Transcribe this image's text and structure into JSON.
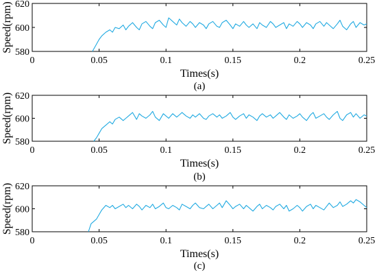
{
  "figure": {
    "colors": {
      "series": "#1fa9e1",
      "axis": "#000000",
      "background": "#ffffff"
    }
  },
  "chart_data": [
    {
      "type": "line",
      "caption": "(a)",
      "xlabel": "Times(s)",
      "ylabel": "Speed(rpm)",
      "xlim": [
        0,
        0.25
      ],
      "ylim": [
        580,
        620
      ],
      "xticks": [
        "0",
        "0.05",
        "0.1",
        "0.15",
        "0.2",
        "0.25"
      ],
      "yticks": [
        "580",
        "600",
        "620"
      ],
      "grid": false,
      "series": [
        {
          "x": [
            0.045,
            0.048,
            0.05,
            0.052,
            0.055,
            0.058,
            0.06,
            0.062,
            0.065,
            0.068,
            0.07,
            0.072,
            0.075,
            0.078,
            0.08,
            0.082,
            0.085,
            0.088,
            0.09,
            0.092,
            0.095,
            0.098,
            0.1,
            0.102,
            0.105,
            0.108,
            0.11,
            0.112,
            0.115,
            0.118,
            0.12,
            0.122,
            0.125,
            0.128,
            0.13,
            0.132,
            0.135,
            0.138,
            0.14,
            0.142,
            0.145,
            0.148,
            0.15,
            0.152,
            0.155,
            0.158,
            0.16,
            0.162,
            0.165,
            0.168,
            0.17,
            0.172,
            0.175,
            0.178,
            0.18,
            0.182,
            0.185,
            0.188,
            0.19,
            0.192,
            0.195,
            0.198,
            0.2,
            0.202,
            0.205,
            0.208,
            0.21,
            0.212,
            0.215,
            0.218,
            0.22,
            0.222,
            0.225,
            0.228,
            0.23,
            0.232,
            0.235,
            0.238,
            0.24,
            0.242,
            0.245,
            0.248,
            0.25
          ],
          "y": [
            580,
            586,
            590,
            593,
            596,
            598,
            596,
            600,
            599,
            602,
            598,
            601,
            604,
            600,
            598,
            603,
            605,
            601,
            599,
            604,
            606,
            602,
            600,
            608,
            605,
            602,
            607,
            604,
            601,
            605,
            603,
            600,
            604,
            602,
            599,
            603,
            605,
            601,
            600,
            604,
            606,
            602,
            599,
            603,
            601,
            605,
            602,
            600,
            603,
            599,
            604,
            602,
            600,
            605,
            603,
            600,
            602,
            604,
            599,
            603,
            601,
            605,
            603,
            600,
            604,
            602,
            599,
            603,
            605,
            601,
            604,
            602,
            599,
            603,
            606,
            601,
            598,
            603,
            605,
            600,
            604,
            602,
            603
          ]
        }
      ]
    },
    {
      "type": "line",
      "caption": "(b)",
      "xlabel": "Times(s)",
      "ylabel": "Speed(rpm)",
      "xlim": [
        0,
        0.25
      ],
      "ylim": [
        580,
        620
      ],
      "xticks": [
        "0",
        "0.05",
        "0.1",
        "0.15",
        "0.2",
        "0.25"
      ],
      "yticks": [
        "580",
        "600",
        "620"
      ],
      "grid": false,
      "series": [
        {
          "x": [
            0.046,
            0.048,
            0.05,
            0.052,
            0.055,
            0.058,
            0.06,
            0.062,
            0.065,
            0.068,
            0.07,
            0.072,
            0.075,
            0.078,
            0.08,
            0.082,
            0.085,
            0.088,
            0.09,
            0.092,
            0.095,
            0.098,
            0.1,
            0.102,
            0.105,
            0.108,
            0.11,
            0.112,
            0.115,
            0.118,
            0.12,
            0.122,
            0.125,
            0.128,
            0.13,
            0.132,
            0.135,
            0.138,
            0.14,
            0.142,
            0.145,
            0.148,
            0.15,
            0.152,
            0.155,
            0.158,
            0.16,
            0.162,
            0.165,
            0.168,
            0.17,
            0.172,
            0.175,
            0.178,
            0.18,
            0.182,
            0.185,
            0.188,
            0.19,
            0.192,
            0.195,
            0.198,
            0.2,
            0.202,
            0.205,
            0.208,
            0.21,
            0.212,
            0.215,
            0.218,
            0.22,
            0.222,
            0.225,
            0.228,
            0.23,
            0.232,
            0.235,
            0.238,
            0.24,
            0.242,
            0.245,
            0.248,
            0.25
          ],
          "y": [
            580,
            583,
            587,
            591,
            594,
            597,
            595,
            599,
            601,
            598,
            600,
            602,
            605,
            599,
            604,
            602,
            600,
            603,
            606,
            601,
            598,
            604,
            602,
            600,
            604,
            601,
            603,
            605,
            602,
            600,
            603,
            601,
            604,
            600,
            599,
            602,
            604,
            601,
            603,
            600,
            602,
            605,
            601,
            599,
            602,
            604,
            600,
            603,
            601,
            598,
            602,
            604,
            601,
            603,
            600,
            602,
            605,
            601,
            599,
            603,
            600,
            602,
            604,
            601,
            598,
            603,
            605,
            600,
            602,
            604,
            601,
            599,
            603,
            606,
            600,
            598,
            603,
            605,
            601,
            604,
            600,
            603,
            602
          ]
        }
      ]
    },
    {
      "type": "line",
      "caption": "(c)",
      "xlabel": "Times(s)",
      "ylabel": "Speed(rpm)",
      "xlim": [
        0,
        0.25
      ],
      "ylim": [
        580,
        620
      ],
      "xticks": [
        "0",
        "0.05",
        "0.1",
        "0.15",
        "0.2",
        "0.25"
      ],
      "yticks": [
        "580",
        "600",
        "620"
      ],
      "grid": false,
      "series": [
        {
          "x": [
            0.042,
            0.044,
            0.046,
            0.048,
            0.05,
            0.052,
            0.055,
            0.058,
            0.06,
            0.062,
            0.065,
            0.068,
            0.07,
            0.072,
            0.075,
            0.078,
            0.08,
            0.082,
            0.085,
            0.088,
            0.09,
            0.092,
            0.095,
            0.098,
            0.1,
            0.102,
            0.105,
            0.108,
            0.11,
            0.112,
            0.115,
            0.118,
            0.12,
            0.122,
            0.125,
            0.128,
            0.13,
            0.132,
            0.135,
            0.138,
            0.14,
            0.142,
            0.145,
            0.148,
            0.15,
            0.152,
            0.155,
            0.158,
            0.16,
            0.162,
            0.165,
            0.168,
            0.17,
            0.172,
            0.175,
            0.178,
            0.18,
            0.182,
            0.185,
            0.188,
            0.19,
            0.192,
            0.195,
            0.198,
            0.2,
            0.202,
            0.205,
            0.208,
            0.21,
            0.212,
            0.215,
            0.218,
            0.22,
            0.222,
            0.225,
            0.228,
            0.23,
            0.232,
            0.235,
            0.238,
            0.24,
            0.242,
            0.245,
            0.248,
            0.25
          ],
          "y": [
            580,
            587,
            589,
            591,
            595,
            599,
            603,
            601,
            603,
            600,
            602,
            604,
            601,
            603,
            600,
            604,
            602,
            599,
            603,
            601,
            604,
            600,
            602,
            605,
            601,
            600,
            603,
            601,
            599,
            604,
            602,
            600,
            603,
            605,
            601,
            600,
            602,
            604,
            600,
            603,
            605,
            601,
            607,
            603,
            600,
            602,
            604,
            600,
            603,
            601,
            598,
            602,
            604,
            600,
            603,
            601,
            599,
            602,
            604,
            600,
            603,
            598,
            600,
            603,
            601,
            598,
            602,
            604,
            600,
            603,
            601,
            599,
            602,
            605,
            601,
            603,
            606,
            602,
            604,
            607,
            605,
            608,
            606,
            603,
            601
          ]
        }
      ]
    }
  ]
}
